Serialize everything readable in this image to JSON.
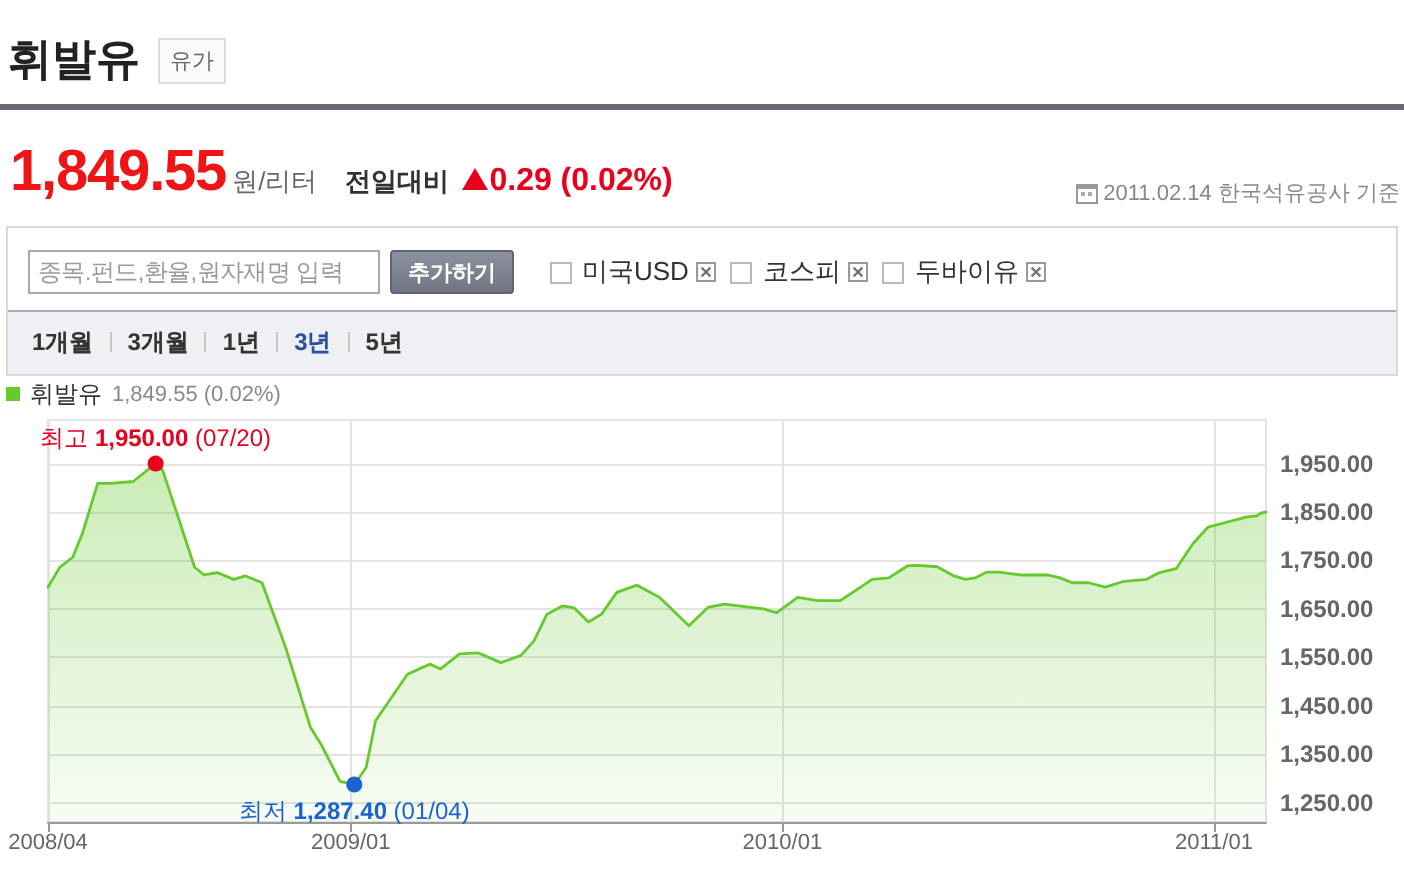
{
  "chart_data": {
    "type": "area",
    "title": "휘발유",
    "subtitle": "유가",
    "x": [
      "2008-04-20",
      "2008-04-30",
      "2008-05-11",
      "2008-05-19",
      "2008-06-01",
      "2008-06-12",
      "2008-07-01",
      "2008-07-20",
      "2008-07-26",
      "2008-08-22",
      "2008-08-30",
      "2008-09-10",
      "2008-09-24",
      "2008-10-04",
      "2008-10-18",
      "2008-11-07",
      "2008-11-28",
      "2008-12-07",
      "2008-12-23",
      "2009-01-04",
      "2009-01-14",
      "2009-01-22",
      "2009-02-18",
      "2009-03-09",
      "2009-03-18",
      "2009-04-03",
      "2009-04-19",
      "2009-05-08",
      "2009-05-25",
      "2009-06-05",
      "2009-06-16",
      "2009-06-29",
      "2009-07-09",
      "2009-07-21",
      "2009-08-01",
      "2009-08-14",
      "2009-08-31",
      "2009-09-19",
      "2009-10-14",
      "2009-10-30",
      "2009-11-13",
      "2009-12-05",
      "2009-12-16",
      "2009-12-27",
      "2010-01-14",
      "2010-01-31",
      "2010-02-19",
      "2010-03-18",
      "2010-04-01",
      "2010-04-17",
      "2010-04-25",
      "2010-05-12",
      "2010-05-26",
      "2010-06-05",
      "2010-06-13",
      "2010-06-23",
      "2010-07-03",
      "2010-07-22",
      "2010-08-13",
      "2010-08-24",
      "2010-09-03",
      "2010-09-17",
      "2010-10-01",
      "2010-10-17",
      "2010-11-05",
      "2010-11-16",
      "2010-11-30",
      "2010-12-14",
      "2010-12-27",
      "2011-01-12",
      "2011-01-29",
      "2011-02-06",
      "2011-02-10",
      "2011-02-14"
    ],
    "series": [
      {
        "name": "휘발유",
        "color": "#66c92e",
        "values": [
          1695,
          1736,
          1757,
          1805,
          1909,
          1909,
          1913,
          1950,
          1936,
          1736,
          1720,
          1725,
          1711,
          1718,
          1704,
          1570,
          1405,
          1370,
          1294,
          1287.4,
          1322,
          1419,
          1515,
          1536,
          1526,
          1557,
          1559,
          1539,
          1554,
          1584,
          1639,
          1656,
          1652,
          1623,
          1639,
          1684,
          1699,
          1674,
          1615,
          1653,
          1660,
          1653,
          1650,
          1642,
          1674,
          1667,
          1667,
          1711,
          1714,
          1739,
          1740,
          1737,
          1718,
          1711,
          1714,
          1726,
          1726,
          1720,
          1720,
          1714,
          1704,
          1704,
          1695,
          1707,
          1711,
          1725,
          1733,
          1784,
          1819,
          1829,
          1840,
          1842,
          1848,
          1849.55
        ]
      }
    ],
    "xlim": [
      "2008-04-20",
      "2011-02-14"
    ],
    "xticks": [
      {
        "value": "2008-04-20",
        "label": "2008/04"
      },
      {
        "value": "2009-01-01",
        "label": "2009/01"
      },
      {
        "value": "2010-01-01",
        "label": "2010/01"
      },
      {
        "value": "2011-01-01",
        "label": "2011/01"
      }
    ],
    "ylim": [
      1210,
      2040
    ],
    "yticks": [
      {
        "value": 1250,
        "label": "1,250.00"
      },
      {
        "value": 1350,
        "label": "1,350.00"
      },
      {
        "value": 1450,
        "label": "1,450.00"
      },
      {
        "value": 1550,
        "label": "1,550.00"
      },
      {
        "value": 1650,
        "label": "1,650.00"
      },
      {
        "value": 1750,
        "label": "1,750.00"
      },
      {
        "value": 1850,
        "label": "1,850.00"
      },
      {
        "value": 1950,
        "label": "1,950.00"
      }
    ],
    "grid": true,
    "legend": "top left",
    "marker": "none",
    "annotations": [
      "1,849.55",
      "원/리터",
      "전일대비",
      "0.29 (0.02%)",
      "2011.02.14 한국석유공사 기준",
      "종목.펀드,환율,원자재명 입력",
      "추가하기",
      "미국USD",
      "코스피",
      "두바이유",
      "1개월",
      "3개월",
      "1년",
      "3년",
      "5년",
      "1,849.55 (0.02%)",
      {
        "text": "최고 1,950.00 (07/20)",
        "x": "2008-07-20",
        "y": 1950
      },
      {
        "text": "최저 1,287.40 (01/04)",
        "x": "2009-01-04",
        "y": 1287.4
      }
    ]
  }
}
